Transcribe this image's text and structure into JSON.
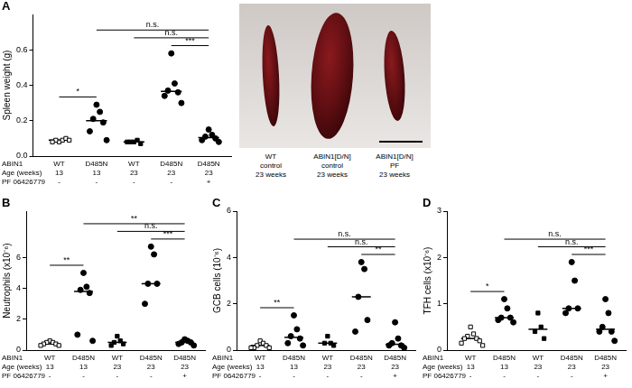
{
  "photo": {
    "labels": [
      [
        "WT",
        "control",
        "23 weeks"
      ],
      [
        "ABIN1[D/N]",
        "control",
        "23 weeks"
      ],
      [
        "ABIN1[D/N]",
        "PF",
        "23 weeks"
      ]
    ]
  },
  "chart_data": [
    {
      "type": "scatter",
      "title": "A",
      "y_label": "Spleen weight (g)",
      "category_rows": [
        "ABIN1",
        "Age (weeks)",
        "PF 06426779"
      ],
      "categories": [
        [
          "WT",
          "13",
          "-"
        ],
        [
          "D485N",
          "13",
          "-"
        ],
        [
          "WT",
          "23",
          "-"
        ],
        [
          "D485N",
          "23",
          "-"
        ],
        [
          "D485N",
          "23",
          "+"
        ]
      ],
      "values": [
        [
          0.08,
          0.09,
          0.09,
          0.1,
          0.08,
          0.09
        ],
        [
          0.29,
          0.25,
          0.21,
          0.19,
          0.14,
          0.09
        ],
        [
          0.08,
          0.09,
          0.08,
          0.07,
          0.08
        ],
        [
          0.58,
          0.41,
          0.37,
          0.36,
          0.34,
          0.3
        ],
        [
          0.15,
          0.12,
          0.11,
          0.1,
          0.09,
          0.08
        ]
      ],
      "medians": [
        0.09,
        0.2,
        0.08,
        0.365,
        0.105
      ],
      "markers": [
        "square_open",
        "circle",
        "square",
        "circle",
        "circle"
      ],
      "color": "#000000",
      "grid": false,
      "ylim": [
        0,
        0.8
      ],
      "yticks": [
        {
          "value": 0,
          "label": "0.0"
        },
        0.2,
        0.4,
        0.6
      ],
      "annotations": [
        {
          "from": 0,
          "to": 1,
          "text": "*"
        },
        {
          "from": 1,
          "to": 4,
          "text": "n.s."
        },
        {
          "from": 2,
          "to": 4,
          "text": "n.s."
        },
        {
          "from": 3,
          "to": 4,
          "text": "***"
        }
      ]
    },
    {
      "type": "scatter",
      "title": "B",
      "y_label": "Neutrophils (x10⁻⁶)",
      "category_rows": [
        "ABIN1",
        "Age (weeks)",
        "PF 06426779"
      ],
      "categories": [
        [
          "WT",
          "13",
          "-"
        ],
        [
          "D485N",
          "13",
          "-"
        ],
        [
          "WT",
          "23",
          "-"
        ],
        [
          "D485N",
          "23",
          "-"
        ],
        [
          "D485N",
          "23",
          "+"
        ]
      ],
      "values": [
        [
          0.6,
          0.5,
          0.5,
          0.4,
          0.4,
          0.3,
          0.3
        ],
        [
          5.0,
          4.1,
          3.9,
          3.7,
          1.0,
          0.6
        ],
        [
          0.9,
          0.6,
          0.5,
          0.4,
          0.3
        ],
        [
          6.7,
          6.2,
          4.3,
          4.3,
          3.0
        ],
        [
          0.7,
          0.6,
          0.5,
          0.5,
          0.4,
          0.3
        ]
      ],
      "medians": [
        0.4,
        3.8,
        0.5,
        4.3,
        0.5
      ],
      "markers": [
        "square_open",
        "circle",
        "square",
        "circle",
        "circle"
      ],
      "color": "#000000",
      "grid": false,
      "ylim": [
        0,
        9
      ],
      "yticks": [
        0,
        2,
        4,
        6
      ],
      "annotations": [
        {
          "from": 0,
          "to": 1,
          "text": "**"
        },
        {
          "from": 1,
          "to": 4,
          "text": "**"
        },
        {
          "from": 2,
          "to": 4,
          "text": "n.s."
        },
        {
          "from": 3,
          "to": 4,
          "text": "***"
        }
      ]
    },
    {
      "type": "scatter",
      "title": "C",
      "y_label": "GCB cells (10⁻⁶)",
      "category_rows": [
        "ABIN1",
        "Age (weeks)",
        "PF 06426779"
      ],
      "categories": [
        [
          "WT",
          "13",
          "-"
        ],
        [
          "D485N",
          "13",
          "-"
        ],
        [
          "WT",
          "23",
          "-"
        ],
        [
          "D485N",
          "23",
          "-"
        ],
        [
          "D485N",
          "23",
          "+"
        ]
      ],
      "values": [
        [
          0.4,
          0.3,
          0.2,
          0.2,
          0.1,
          0.1,
          0.1
        ],
        [
          1.5,
          0.9,
          0.6,
          0.5,
          0.3,
          0.2
        ],
        [
          0.6,
          0.3,
          0.3,
          0.2
        ],
        [
          3.8,
          3.5,
          2.3,
          1.3,
          0.8
        ],
        [
          1.2,
          0.5,
          0.3,
          0.2,
          0.2,
          0.1
        ]
      ],
      "medians": [
        0.2,
        0.55,
        0.3,
        2.3,
        0.25
      ],
      "markers": [
        "square_open",
        "circle",
        "square",
        "circle",
        "circle"
      ],
      "color": "#000000",
      "grid": false,
      "ylim": [
        0,
        6
      ],
      "yticks": [
        0,
        2,
        4,
        6
      ],
      "annotations": [
        {
          "from": 0,
          "to": 1,
          "text": "**"
        },
        {
          "from": 1,
          "to": 4,
          "text": "n.s."
        },
        {
          "from": 2,
          "to": 4,
          "text": "n.s."
        },
        {
          "from": 3,
          "to": 4,
          "text": "**"
        }
      ]
    },
    {
      "type": "scatter",
      "title": "D",
      "y_label": "TFH cells (x10⁻⁶)",
      "category_rows": [
        "ABIN1",
        "Age (weeks)",
        "PF 06426779"
      ],
      "categories": [
        [
          "WT",
          "13",
          "-"
        ],
        [
          "D485N",
          "13",
          "-"
        ],
        [
          "WT",
          "23",
          "-"
        ],
        [
          "D485N",
          "23",
          "-"
        ],
        [
          "D485N",
          "23",
          "+"
        ]
      ],
      "values": [
        [
          0.5,
          0.35,
          0.3,
          0.25,
          0.25,
          0.2,
          0.15,
          0.1
        ],
        [
          1.1,
          0.9,
          0.7,
          0.7,
          0.65,
          0.6
        ],
        [
          0.8,
          0.5,
          0.4,
          0.25
        ],
        [
          1.9,
          1.5,
          0.9,
          0.9,
          0.8
        ],
        [
          1.1,
          0.8,
          0.5,
          0.4,
          0.4,
          0.2
        ]
      ],
      "medians": [
        0.25,
        0.7,
        0.45,
        0.9,
        0.45
      ],
      "markers": [
        "square_open",
        "circle",
        "square",
        "circle",
        "circle"
      ],
      "color": "#000000",
      "grid": false,
      "ylim": [
        0,
        3
      ],
      "yticks": [
        0,
        1,
        2,
        3
      ],
      "annotations": [
        {
          "from": 0,
          "to": 1,
          "text": "*"
        },
        {
          "from": 1,
          "to": 4,
          "text": "n.s."
        },
        {
          "from": 2,
          "to": 4,
          "text": "n.s."
        },
        {
          "from": 3,
          "to": 4,
          "text": "***"
        }
      ]
    }
  ]
}
